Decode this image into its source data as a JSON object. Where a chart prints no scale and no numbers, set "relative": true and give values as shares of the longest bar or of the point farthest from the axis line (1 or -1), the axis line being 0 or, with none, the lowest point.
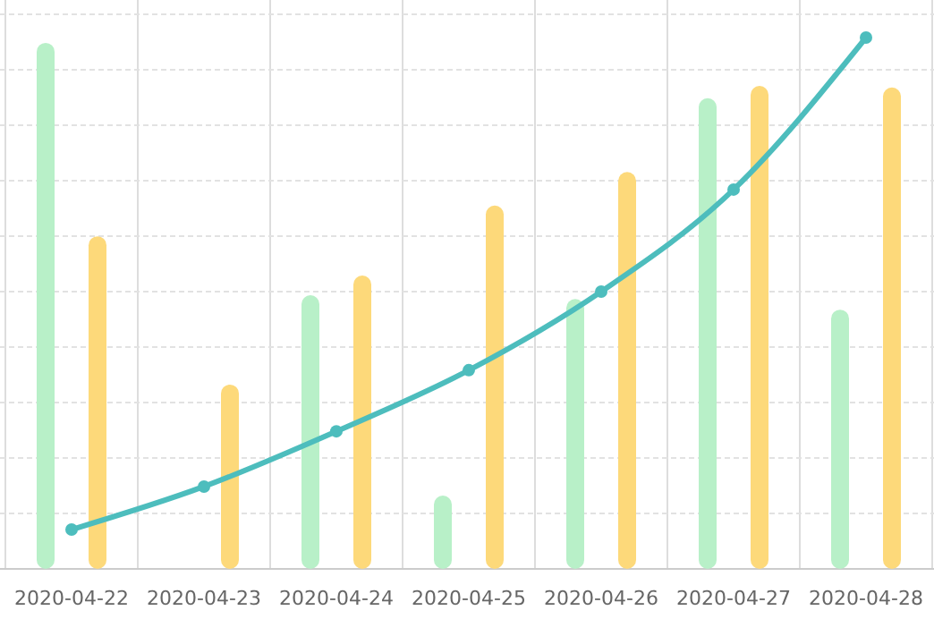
{
  "chart_data": {
    "type": "bar",
    "relative": true,
    "grid": true,
    "marker": "circle",
    "categories": [
      "2020-04-22",
      "2020-04-23",
      "2020-04-24",
      "2020-04-25",
      "2020-04-26",
      "2020-04-27",
      "2020-04-28"
    ],
    "series": [
      {
        "color": "#b8f0c8",
        "values": [
          0.99,
          null,
          0.515,
          0.138,
          0.508,
          0.886,
          0.488
        ]
      },
      {
        "color": "#fdd97a",
        "values": [
          0.626,
          0.347,
          0.552,
          0.684,
          0.747,
          0.909,
          0.906
        ]
      },
      {
        "type": "line",
        "color": "#4dbdbd",
        "values": [
          0.074,
          0.155,
          0.259,
          0.374,
          0.522,
          0.714,
          1
        ]
      }
    ]
  }
}
